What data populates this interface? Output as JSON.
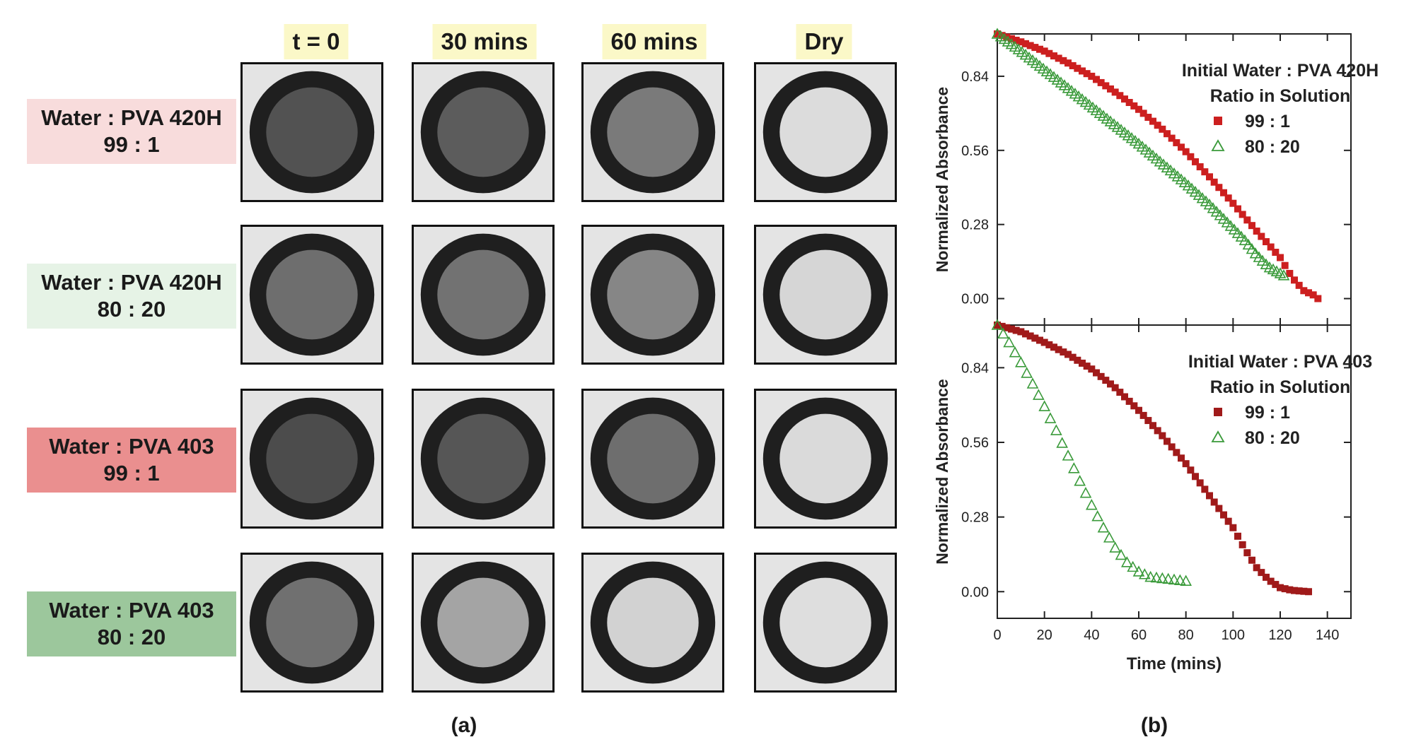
{
  "panel_a": {
    "columns": [
      "t = 0",
      "30 mins",
      "60 mins",
      "Dry"
    ],
    "rows": [
      {
        "line1": "Water : PVA 420H",
        "line2": "99 : 1",
        "bg": "#f8dcdc",
        "shades": [
          "#525252",
          "#5c5c5c",
          "#7a7a7a",
          "#dcdcdc"
        ]
      },
      {
        "line1": "Water : PVA 420H",
        "line2": "80 : 20",
        "bg": "#e6f3e6",
        "shades": [
          "#6e6e6e",
          "#727272",
          "#868686",
          "#d6d6d6"
        ]
      },
      {
        "line1": "Water : PVA 403",
        "line2": "99 : 1",
        "bg": "#ea8f8f",
        "shades": [
          "#4c4c4c",
          "#565656",
          "#6e6e6e",
          "#dadada"
        ]
      },
      {
        "line1": "Water : PVA 403",
        "line2": "80 : 20",
        "bg": "#9cc79c",
        "shades": [
          "#707070",
          "#a4a4a4",
          "#d2d2d2",
          "#dedede"
        ]
      }
    ],
    "caption": "(a)"
  },
  "panel_b_caption": "(b)",
  "chart_data": [
    {
      "type": "scatter",
      "ylabel": "Normalized Absorbance",
      "xlabel": "",
      "xlim": [
        0,
        150
      ],
      "ylim": [
        -0.1,
        1.0
      ],
      "yticks": [
        "0.00",
        "0.28",
        "0.56",
        "0.84"
      ],
      "show_xticks": false,
      "legend_title": [
        "Initial Water : PVA 420H",
        "Ratio in Solution"
      ],
      "series": [
        {
          "name": "99 : 1",
          "marker": "square",
          "color": "#cc1f1f",
          "x_end": 136,
          "points": [
            [
              0,
              1.0
            ],
            [
              10,
              0.97
            ],
            [
              20,
              0.935
            ],
            [
              30,
              0.89
            ],
            [
              40,
              0.84
            ],
            [
              50,
              0.78
            ],
            [
              60,
              0.715
            ],
            [
              70,
              0.64
            ],
            [
              80,
              0.555
            ],
            [
              90,
              0.46
            ],
            [
              100,
              0.36
            ],
            [
              110,
              0.255
            ],
            [
              120,
              0.155
            ],
            [
              125,
              0.08
            ],
            [
              130,
              0.03
            ],
            [
              135,
              0.01
            ],
            [
              136,
              0.0
            ]
          ]
        },
        {
          "name": "80 : 20",
          "marker": "triangle",
          "color": "#3a9a3a",
          "x_end": 122,
          "points": [
            [
              0,
              1.0
            ],
            [
              10,
              0.935
            ],
            [
              20,
              0.865
            ],
            [
              30,
              0.795
            ],
            [
              40,
              0.725
            ],
            [
              50,
              0.655
            ],
            [
              60,
              0.585
            ],
            [
              70,
              0.51
            ],
            [
              80,
              0.435
            ],
            [
              90,
              0.355
            ],
            [
              100,
              0.265
            ],
            [
              105,
              0.22
            ],
            [
              110,
              0.165
            ],
            [
              115,
              0.12
            ],
            [
              120,
              0.095
            ],
            [
              122,
              0.085
            ]
          ]
        }
      ]
    },
    {
      "type": "scatter",
      "ylabel": "Normalized Absorbance",
      "xlabel": "Time (mins)",
      "xlim": [
        0,
        150
      ],
      "ylim": [
        -0.1,
        1.0
      ],
      "xticks": [
        "0",
        "20",
        "40",
        "60",
        "80",
        "100",
        "120",
        "140"
      ],
      "yticks": [
        "0.00",
        "0.28",
        "0.56",
        "0.84"
      ],
      "show_xticks": true,
      "legend_title": [
        "Initial Water : PVA 403",
        "Ratio in Solution"
      ],
      "series": [
        {
          "name": "99 : 1",
          "marker": "square",
          "color": "#a01a1a",
          "x_end": 132,
          "points": [
            [
              0,
              1.0
            ],
            [
              10,
              0.975
            ],
            [
              20,
              0.935
            ],
            [
              30,
              0.89
            ],
            [
              40,
              0.835
            ],
            [
              50,
              0.765
            ],
            [
              60,
              0.68
            ],
            [
              70,
              0.585
            ],
            [
              80,
              0.48
            ],
            [
              90,
              0.36
            ],
            [
              100,
              0.24
            ],
            [
              105,
              0.16
            ],
            [
              110,
              0.09
            ],
            [
              115,
              0.045
            ],
            [
              120,
              0.015
            ],
            [
              125,
              0.005
            ],
            [
              132,
              0.0
            ]
          ]
        },
        {
          "name": "80 : 20",
          "marker": "triangle",
          "color": "#3a9a3a",
          "x_end": 80,
          "points": [
            [
              0,
              1.0
            ],
            [
              5,
              0.935
            ],
            [
              10,
              0.86
            ],
            [
              15,
              0.78
            ],
            [
              20,
              0.695
            ],
            [
              25,
              0.605
            ],
            [
              30,
              0.51
            ],
            [
              35,
              0.415
            ],
            [
              40,
              0.325
            ],
            [
              45,
              0.24
            ],
            [
              50,
              0.165
            ],
            [
              55,
              0.11
            ],
            [
              60,
              0.075
            ],
            [
              65,
              0.055
            ],
            [
              70,
              0.05
            ],
            [
              75,
              0.045
            ],
            [
              80,
              0.04
            ]
          ]
        }
      ]
    }
  ]
}
